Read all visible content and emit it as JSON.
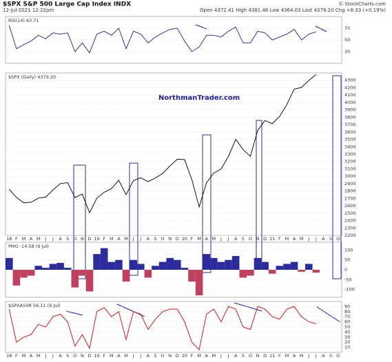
{
  "header": {
    "title": "$SPX S&P 500 Large Cap Index INDX",
    "date": "12-Jul-2021 12:22pm",
    "credit": "© StockCharts.com",
    "ohlc": "Open 4372.41 High 4381.46 Low 4364.03 Last 4379.20 Chg +8.33 (+0.19%)",
    "watermark": "NorthmanTrader.com"
  },
  "chart_data": [
    {
      "type": "line",
      "title": "RSI(14) 63.71",
      "color": "#34348a",
      "ylim": [
        10,
        90
      ],
      "yticks": [
        30,
        50,
        70
      ],
      "grid": true,
      "values": [
        75,
        35,
        42,
        48,
        58,
        52,
        62,
        60,
        62,
        30,
        45,
        28,
        60,
        65,
        58,
        70,
        35,
        65,
        60,
        45,
        55,
        62,
        68,
        70,
        48,
        30,
        38,
        58,
        58,
        55,
        65,
        72,
        45,
        45,
        65,
        62,
        50,
        55,
        60,
        68,
        50,
        60,
        63.71,
        null,
        null,
        null
      ]
    },
    {
      "type": "line",
      "title": "$SPX (Daily) 4379.20",
      "color": "#111111",
      "ylim": [
        2200,
        4400
      ],
      "yticks": [
        2200,
        2300,
        2400,
        2500,
        2600,
        2700,
        2800,
        2900,
        3000,
        3100,
        3200,
        3300,
        3400,
        3500,
        3600,
        3700,
        3800,
        3900,
        4000,
        4100,
        4200,
        4300
      ],
      "grid": true,
      "categories": [
        "18",
        "F",
        "M",
        "A",
        "M",
        "J",
        "J",
        "A",
        "S",
        "O",
        "N",
        "D",
        "19",
        "F",
        "M",
        "A",
        "M",
        "J",
        "J",
        "A",
        "S",
        "O",
        "N",
        "D",
        "20",
        "F",
        "M",
        "A",
        "M",
        "J",
        "J",
        "A",
        "S",
        "O",
        "N",
        "D",
        "21",
        "F",
        "M",
        "A",
        "M",
        "J",
        "J",
        "A",
        "S",
        "O"
      ],
      "values": [
        2824,
        2714,
        2641,
        2648,
        2705,
        2718,
        2816,
        2901,
        2914,
        2712,
        2760,
        2507,
        2704,
        2784,
        2834,
        2946,
        2752,
        2942,
        2980,
        2926,
        2977,
        3038,
        3141,
        3231,
        3226,
        2954,
        2585,
        2912,
        3044,
        3100,
        3271,
        3500,
        3363,
        3270,
        3622,
        3756,
        3714,
        3811,
        3973,
        4181,
        4204,
        4298,
        4379.2,
        null,
        null,
        null
      ]
    },
    {
      "type": "bar",
      "title": "PMO -14.58 (9 Jul)",
      "color": "#2b2b9c",
      "negative_color": "#c04060",
      "ylim": [
        -140,
        140
      ],
      "yticks": [
        -100,
        -50,
        0,
        50,
        100
      ],
      "grid": true,
      "values": [
        60,
        -80,
        -40,
        -30,
        20,
        10,
        30,
        35,
        10,
        -90,
        -30,
        -110,
        80,
        110,
        40,
        50,
        -60,
        50,
        30,
        -40,
        20,
        40,
        60,
        50,
        10,
        -60,
        -130,
        80,
        60,
        40,
        50,
        70,
        -40,
        -30,
        60,
        40,
        -20,
        20,
        30,
        40,
        -10,
        30,
        -14.58,
        null,
        null,
        null
      ]
    },
    {
      "type": "line",
      "title": "$SPXA50R 56.11 (9 Jul)",
      "color": "#cc1a1a",
      "ylim": [
        0,
        100
      ],
      "yticks": [
        10,
        20,
        30,
        40,
        50,
        60,
        70,
        80,
        90
      ],
      "grid": true,
      "categories": [
        "18",
        "F",
        "M",
        "A",
        "M",
        "J",
        "J",
        "A",
        "S",
        "O",
        "N",
        "D",
        "19",
        "F",
        "M",
        "A",
        "M",
        "J",
        "J",
        "A",
        "S",
        "O",
        "N",
        "D",
        "20",
        "F",
        "M",
        "A",
        "M",
        "J",
        "J",
        "A",
        "S",
        "O",
        "N",
        "D",
        "21",
        "F",
        "M",
        "A",
        "M",
        "J",
        "J",
        "A",
        "S",
        "O"
      ],
      "values": [
        85,
        20,
        30,
        35,
        55,
        50,
        70,
        75,
        60,
        12,
        35,
        8,
        80,
        88,
        70,
        80,
        25,
        80,
        75,
        45,
        65,
        80,
        85,
        85,
        60,
        20,
        5,
        75,
        85,
        60,
        90,
        85,
        50,
        45,
        90,
        85,
        70,
        65,
        85,
        90,
        70,
        60,
        56.11,
        null,
        null,
        null
      ]
    }
  ]
}
